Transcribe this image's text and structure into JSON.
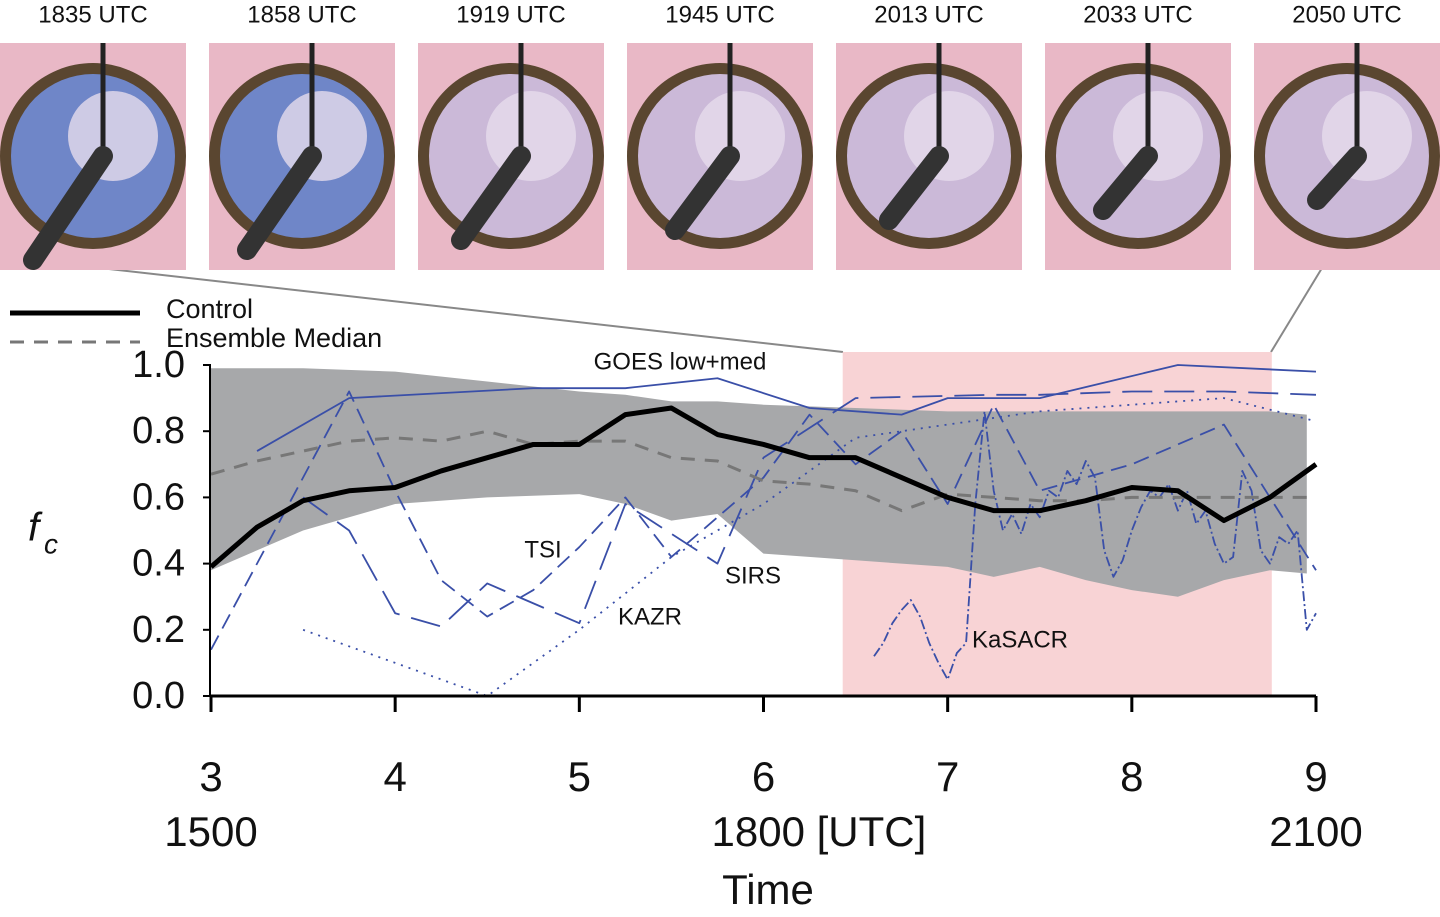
{
  "photos": [
    "1835 UTC",
    "1858 UTC",
    "1919 UTC",
    "1945 UTC",
    "2013 UTC",
    "2033 UTC",
    "2050 UTC"
  ],
  "chart_data": {
    "type": "line",
    "ylabel": "f",
    "ylabel_subscript": "c",
    "xlabel": "Time",
    "xlim": [
      3,
      9
    ],
    "xticks": [
      3,
      4,
      5,
      6,
      7,
      8,
      9
    ],
    "x2_labels": [
      {
        "value": 3,
        "label": "1500"
      },
      {
        "value": 6,
        "label": "1800 [UTC]"
      },
      {
        "value": 9,
        "label": "2100"
      }
    ],
    "ylim": [
      0,
      1
    ],
    "yticks": [
      {
        "value": 0,
        "label": "0.0"
      },
      0.2,
      0.4,
      0.6,
      0.8,
      {
        "value": 1,
        "label": "1.0"
      }
    ],
    "highlight": {
      "xlim": [
        6.43,
        8.76
      ],
      "color": "#f8d3d5"
    },
    "ensemble_range": {
      "color": "#a7a8aa",
      "x": [
        3,
        3.5,
        4,
        4.5,
        5,
        5.25,
        5.5,
        5.75,
        6,
        6.5,
        7,
        7.25,
        7.5,
        7.75,
        8,
        8.25,
        8.5,
        8.75,
        8.95
      ],
      "upper": [
        0.99,
        0.99,
        0.98,
        0.95,
        0.92,
        0.91,
        0.89,
        0.89,
        0.88,
        0.87,
        0.86,
        0.86,
        0.86,
        0.86,
        0.86,
        0.86,
        0.86,
        0.86,
        0.85
      ],
      "lower": [
        0.38,
        0.5,
        0.58,
        0.6,
        0.61,
        0.58,
        0.53,
        0.55,
        0.43,
        0.41,
        0.39,
        0.36,
        0.39,
        0.35,
        0.32,
        0.3,
        0.35,
        0.38,
        0.37
      ]
    },
    "series": [
      {
        "name": "Control",
        "color": "#000000",
        "in_legend": true,
        "x": [
          3,
          3.25,
          3.5,
          3.75,
          4,
          4.25,
          4.5,
          4.75,
          5,
          5.25,
          5.5,
          5.75,
          6,
          6.25,
          6.5,
          6.75,
          7,
          7.25,
          7.5,
          7.75,
          8,
          8.25,
          8.5,
          8.75,
          9
        ],
        "values": [
          0.39,
          0.51,
          0.59,
          0.62,
          0.63,
          0.68,
          0.72,
          0.76,
          0.76,
          0.85,
          0.87,
          0.79,
          0.76,
          0.72,
          0.72,
          0.66,
          0.6,
          0.56,
          0.56,
          0.59,
          0.63,
          0.62,
          0.53,
          0.6,
          0.7
        ]
      },
      {
        "name": "Ensemble Median",
        "color": "#777777",
        "in_legend": true,
        "x": [
          3,
          3.25,
          3.5,
          3.75,
          4,
          4.25,
          4.5,
          4.75,
          5,
          5.25,
          5.5,
          5.75,
          6,
          6.25,
          6.5,
          6.75,
          7,
          7.25,
          7.5,
          7.75,
          8,
          8.25,
          8.5,
          8.75,
          9
        ],
        "values": [
          0.67,
          0.71,
          0.74,
          0.77,
          0.78,
          0.77,
          0.8,
          0.76,
          0.77,
          0.77,
          0.72,
          0.71,
          0.65,
          0.64,
          0.62,
          0.56,
          0.61,
          0.6,
          0.59,
          0.59,
          0.6,
          0.6,
          0.6,
          0.6,
          0.6
        ]
      },
      {
        "name": "GOES low+med",
        "color": "#3a4fa8",
        "in_legend": false,
        "x": [
          3.25,
          3.75,
          4.75,
          5.25,
          5.75,
          6.25,
          6.75,
          7,
          7.5,
          8.25,
          9
        ],
        "values": [
          0.74,
          0.9,
          0.93,
          0.93,
          0.96,
          0.87,
          0.85,
          0.9,
          0.9,
          1.0,
          0.98
        ]
      },
      {
        "name": "TSI",
        "color": "#3a4fa8",
        "in_legend": false,
        "x": [
          3,
          3.75,
          4,
          4.25,
          4.5,
          4.75,
          5,
          5.25,
          5.5,
          6,
          6.25,
          6.5,
          6.75,
          7,
          7.25,
          7.5,
          8,
          8.5,
          9
        ],
        "values": [
          0.14,
          0.92,
          0.62,
          0.35,
          0.24,
          0.32,
          0.45,
          0.6,
          0.42,
          0.66,
          0.85,
          0.7,
          0.8,
          0.58,
          0.88,
          0.62,
          0.7,
          0.82,
          0.38
        ]
      },
      {
        "name": "SIRS",
        "color": "#3a4fa8",
        "in_legend": false,
        "x": [
          3.5,
          3.75,
          4,
          4.25,
          4.5,
          5,
          5.25,
          5.75,
          6,
          6.5,
          7.25,
          7.5,
          8,
          8.5,
          9
        ],
        "values": [
          0.6,
          0.5,
          0.25,
          0.21,
          0.34,
          0.22,
          0.58,
          0.4,
          0.72,
          0.9,
          0.91,
          0.91,
          0.92,
          0.92,
          0.91
        ]
      },
      {
        "name": "KAZR",
        "color": "#3a4fa8",
        "in_legend": false,
        "x": [
          3.5,
          4.5,
          5,
          5.5,
          6,
          6.5,
          7,
          7.5,
          8,
          8.5,
          9
        ],
        "values": [
          0.2,
          0.0,
          0.2,
          0.42,
          0.58,
          0.78,
          0.82,
          0.86,
          0.88,
          0.9,
          0.83
        ]
      },
      {
        "name": "KaSACR",
        "color": "#3a4fa8",
        "in_legend": false,
        "x": [
          6.6,
          6.65,
          6.7,
          6.75,
          6.8,
          6.85,
          6.9,
          6.95,
          7.0,
          7.05,
          7.1,
          7.15,
          7.2,
          7.25,
          7.3,
          7.35,
          7.4,
          7.45,
          7.5,
          7.55,
          7.6,
          7.65,
          7.7,
          7.75,
          7.8,
          7.85,
          7.9,
          7.95,
          8.0,
          8.05,
          8.1,
          8.15,
          8.2,
          8.25,
          8.3,
          8.35,
          8.4,
          8.45,
          8.5,
          8.55,
          8.6,
          8.65,
          8.7,
          8.75,
          8.8,
          8.85,
          8.9,
          8.95,
          9.0
        ],
        "values": [
          0.12,
          0.16,
          0.22,
          0.26,
          0.29,
          0.24,
          0.16,
          0.1,
          0.05,
          0.13,
          0.16,
          0.58,
          0.86,
          0.62,
          0.5,
          0.55,
          0.49,
          0.58,
          0.54,
          0.62,
          0.6,
          0.68,
          0.64,
          0.71,
          0.66,
          0.44,
          0.36,
          0.41,
          0.5,
          0.57,
          0.62,
          0.6,
          0.64,
          0.56,
          0.62,
          0.52,
          0.56,
          0.46,
          0.4,
          0.42,
          0.68,
          0.62,
          0.44,
          0.4,
          0.48,
          0.46,
          0.5,
          0.2,
          0.25
        ]
      }
    ]
  }
}
